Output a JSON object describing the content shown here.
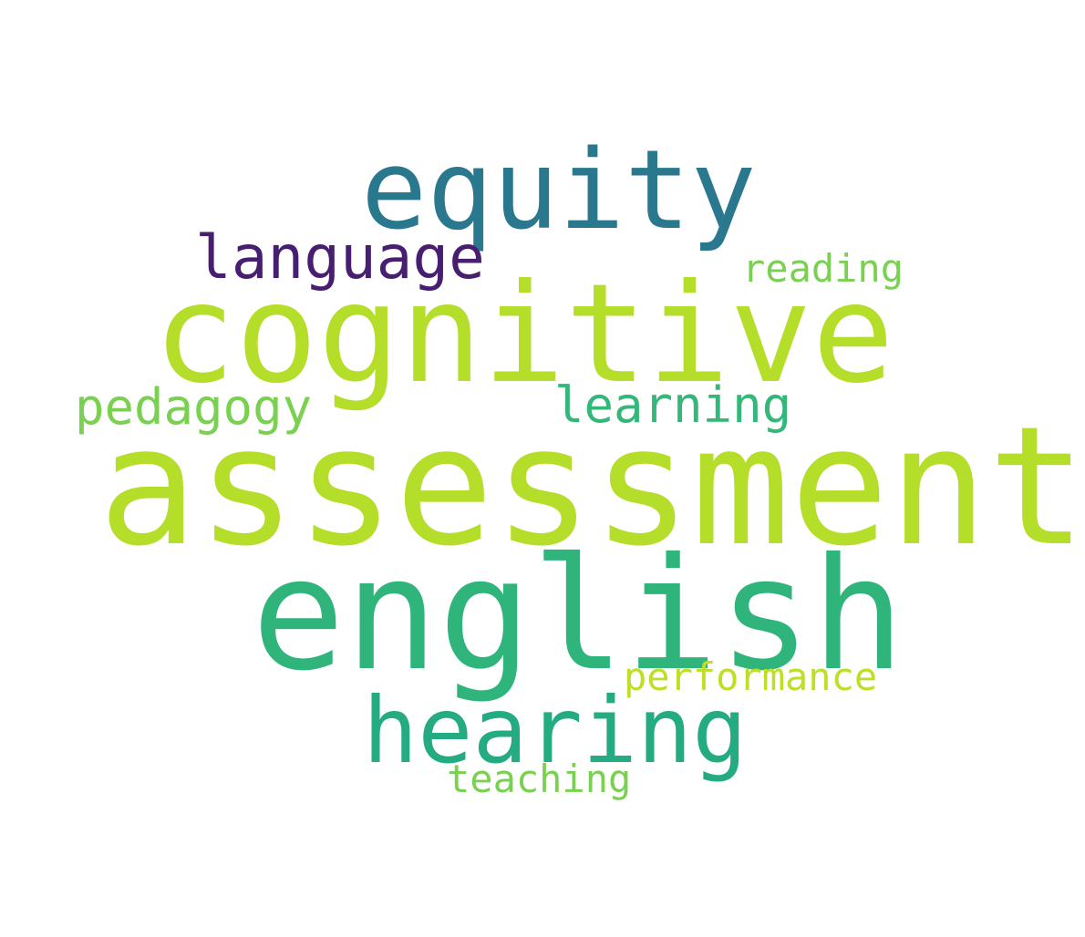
{
  "words": [
    {
      "id": "assessment",
      "text": "assessment",
      "color": "#b5de2b"
    },
    {
      "id": "english",
      "text": "english",
      "color": "#2fb47c"
    },
    {
      "id": "cognitive",
      "text": "cognitive",
      "color": "#b5de2b"
    },
    {
      "id": "equity",
      "text": "equity",
      "color": "#2a788e"
    },
    {
      "id": "hearing",
      "text": "hearing",
      "color": "#25ab82"
    },
    {
      "id": "language",
      "text": "language",
      "color": "#481f70"
    },
    {
      "id": "pedagogy",
      "text": "pedagogy",
      "color": "#7ad151"
    },
    {
      "id": "learning",
      "text": "learning",
      "color": "#35b779"
    },
    {
      "id": "reading",
      "text": "reading",
      "color": "#7ad151"
    },
    {
      "id": "performance",
      "text": "performance",
      "color": "#bddf26"
    },
    {
      "id": "teaching",
      "text": "teaching",
      "color": "#7ad151"
    }
  ]
}
